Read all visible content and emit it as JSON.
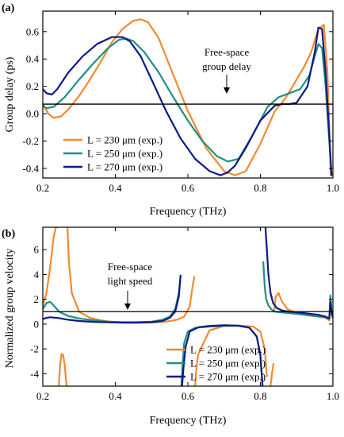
{
  "chart_data": [
    {
      "panel_label": "(a)",
      "type": "line",
      "xlabel": "Frequency (THz)",
      "ylabel": "Group delay (ps)",
      "xlim": [
        0.2,
        1.0
      ],
      "ylim": [
        -0.47,
        0.75
      ],
      "xticks": [
        "0.2",
        "0.4",
        "0.6",
        "0.8",
        "1.0"
      ],
      "yticks": [
        "-0.4",
        "-0.2",
        "0.0",
        "0.2",
        "0.4",
        "0.6"
      ],
      "xtick_values": [
        0.2,
        0.4,
        0.6,
        0.8,
        1.0
      ],
      "ytick_values": [
        -0.4,
        -0.2,
        0.0,
        0.2,
        0.4,
        0.6
      ],
      "grid": false,
      "legend_position": "bottom-left",
      "reference_line": {
        "y": 0.07,
        "annotation": [
          "Free-space",
          "group delay"
        ]
      },
      "series": [
        {
          "name": "L = 230 μm (exp.)",
          "color": "#f28a2e",
          "x": [
            0.2,
            0.215,
            0.23,
            0.25,
            0.27,
            0.3,
            0.33,
            0.36,
            0.39,
            0.42,
            0.45,
            0.47,
            0.49,
            0.52,
            0.55,
            0.6,
            0.65,
            0.7,
            0.73,
            0.76,
            0.8,
            0.84,
            0.86,
            0.88,
            0.9,
            0.92,
            0.94,
            0.96,
            0.975,
            0.985,
            0.99,
            0.994
          ],
          "y": [
            0.07,
            0.0,
            -0.03,
            -0.02,
            0.03,
            0.13,
            0.25,
            0.38,
            0.52,
            0.62,
            0.68,
            0.69,
            0.67,
            0.55,
            0.35,
            0.02,
            -0.25,
            -0.42,
            -0.45,
            -0.42,
            -0.22,
            0.02,
            0.08,
            0.16,
            0.25,
            0.34,
            0.45,
            0.62,
            0.65,
            0.3,
            -0.1,
            -0.45
          ]
        },
        {
          "name": "L = 250 μm (exp.)",
          "color": "#1f8f80",
          "x": [
            0.2,
            0.21,
            0.23,
            0.26,
            0.3,
            0.34,
            0.38,
            0.41,
            0.43,
            0.45,
            0.48,
            0.52,
            0.56,
            0.6,
            0.64,
            0.68,
            0.71,
            0.74,
            0.78,
            0.82,
            0.85,
            0.88,
            0.91,
            0.935,
            0.95,
            0.96,
            0.97,
            0.98,
            0.99,
            0.996
          ],
          "y": [
            0.06,
            0.04,
            0.05,
            0.12,
            0.25,
            0.37,
            0.48,
            0.54,
            0.55,
            0.53,
            0.45,
            0.3,
            0.12,
            -0.05,
            -0.2,
            -0.31,
            -0.35,
            -0.33,
            -0.15,
            0.05,
            0.12,
            0.15,
            0.18,
            0.28,
            0.42,
            0.51,
            0.48,
            0.2,
            -0.2,
            -0.45
          ]
        },
        {
          "name": "L = 270 μm (exp.)",
          "color": "#0d1a86",
          "x": [
            0.2,
            0.21,
            0.225,
            0.24,
            0.27,
            0.31,
            0.35,
            0.39,
            0.42,
            0.44,
            0.47,
            0.5,
            0.54,
            0.58,
            0.62,
            0.66,
            0.69,
            0.71,
            0.73,
            0.76,
            0.8,
            0.84,
            0.86,
            0.88,
            0.9,
            0.93,
            0.95,
            0.96,
            0.97,
            0.98,
            0.99,
            0.996
          ],
          "y": [
            0.18,
            0.15,
            0.14,
            0.18,
            0.3,
            0.42,
            0.51,
            0.56,
            0.56,
            0.53,
            0.42,
            0.25,
            0.02,
            -0.18,
            -0.33,
            -0.42,
            -0.45,
            -0.43,
            -0.38,
            -0.25,
            -0.05,
            0.06,
            0.07,
            0.07,
            0.08,
            0.2,
            0.45,
            0.63,
            0.62,
            0.3,
            -0.15,
            -0.45
          ]
        }
      ]
    },
    {
      "panel_label": "(b)",
      "type": "line",
      "xlabel": "Frequency (THz)",
      "ylabel": "Normalized group velocity",
      "xlim": [
        0.2,
        1.0
      ],
      "ylim": [
        -5,
        7.8
      ],
      "xticks": [
        "0.2",
        "0.4",
        "0.6",
        "0.8",
        "1.0"
      ],
      "yticks": [
        "-4",
        "-2",
        "0",
        "2",
        "4",
        "6"
      ],
      "xtick_values": [
        0.2,
        0.4,
        0.6,
        0.8,
        1.0
      ],
      "ytick_values": [
        -4,
        -2,
        0,
        2,
        4,
        6
      ],
      "grid": false,
      "legend_position": "bottom-right",
      "reference_line": {
        "y": 1.0,
        "annotation": [
          "Free-space",
          "light speed"
        ]
      },
      "series": [
        {
          "name": "L = 230 μm (exp.)",
          "color": "#f28a2e",
          "segments": [
            {
              "x": [
                0.2,
                0.21,
                0.22,
                0.23,
                0.236,
                0.24
              ],
              "y": [
                1.5,
                2.5,
                4.5,
                7.0,
                7.8,
                7.8
              ]
            },
            {
              "x": [
                0.244,
                0.248,
                0.252,
                0.256,
                0.26,
                0.264,
                0.266
              ],
              "y": [
                -5.0,
                -3.2,
                -2.4,
                -2.5,
                -3.2,
                -4.5,
                -5.0
              ]
            },
            {
              "x": [
                0.268,
                0.272,
                0.28,
                0.3,
                0.33,
                0.37,
                0.41,
                0.45,
                0.5,
                0.54,
                0.57,
                0.59,
                0.605,
                0.613,
                0.618
              ],
              "y": [
                7.8,
                5.0,
                2.5,
                1.0,
                0.5,
                0.25,
                0.12,
                0.1,
                0.12,
                0.2,
                0.35,
                0.6,
                1.4,
                3.0,
                3.8
              ]
            },
            {
              "x": [
                0.62,
                0.624,
                0.628,
                0.632
              ],
              "y": [
                -5.0,
                -3.5,
                -2.5,
                -2.2
              ]
            },
            {
              "x": [
                0.632,
                0.66,
                0.7,
                0.74,
                0.78,
                0.8,
                0.812,
                0.818
              ],
              "y": [
                -2.2,
                -0.5,
                -0.15,
                -0.12,
                -0.2,
                -0.6,
                -2.0,
                -4.2
              ]
            },
            {
              "x": [
                0.828,
                0.832,
                0.836
              ],
              "y": [
                -5.0,
                -4.0,
                -3.2
              ]
            },
            {
              "x": [
                0.838,
                0.842,
                0.85,
                0.86,
                0.875,
                0.9,
                0.93,
                0.96,
                0.98,
                0.99,
                0.995,
                1.0
              ],
              "y": [
                1.0,
                2.2,
                2.5,
                1.8,
                1.2,
                0.9,
                0.7,
                0.6,
                0.5,
                0.3,
                1.2,
                0.5
              ]
            }
          ]
        },
        {
          "name": "L = 250 μm (exp.)",
          "color": "#1f8f80",
          "segments": [
            {
              "x": [
                0.2,
                0.21,
                0.22,
                0.23,
                0.245,
                0.27,
                0.3,
                0.34,
                0.38,
                0.42,
                0.46,
                0.5,
                0.53,
                0.55,
                0.565,
                0.575,
                0.58
              ],
              "y": [
                1.2,
                1.7,
                1.8,
                1.5,
                1.0,
                0.65,
                0.45,
                0.3,
                0.2,
                0.15,
                0.15,
                0.2,
                0.35,
                0.6,
                1.2,
                2.5,
                3.9
              ]
            },
            {
              "x": [
                0.582,
                0.586,
                0.59,
                0.6,
                0.62,
                0.66,
                0.7,
                0.74,
                0.77,
                0.79,
                0.8,
                0.806
              ],
              "y": [
                -5.0,
                -3.0,
                -1.5,
                -0.6,
                -0.3,
                -0.2,
                -0.15,
                -0.15,
                -0.3,
                -1.0,
                -2.5,
                -5.0
              ]
            },
            {
              "x": [
                0.808,
                0.812,
                0.816,
                0.822,
                0.83,
                0.84,
                0.855,
                0.87,
                0.89,
                0.92,
                0.95,
                0.98,
                0.99,
                0.993,
                0.996,
                1.0
              ],
              "y": [
                5.0,
                3.0,
                2.0,
                1.5,
                1.2,
                1.0,
                0.95,
                0.9,
                0.85,
                0.75,
                0.65,
                0.55,
                0.4,
                2.3,
                1.2,
                0.6
              ]
            }
          ]
        },
        {
          "name": "L = 270 μm (exp.)",
          "color": "#0d1a86",
          "segments": [
            {
              "x": [
                0.2,
                0.21,
                0.22,
                0.24,
                0.27,
                0.3,
                0.34,
                0.38,
                0.42,
                0.46,
                0.5,
                0.53,
                0.55,
                0.565,
                0.575,
                0.58
              ],
              "y": [
                0.4,
                0.5,
                0.55,
                0.5,
                0.35,
                0.25,
                0.18,
                0.14,
                0.12,
                0.12,
                0.15,
                0.25,
                0.5,
                1.0,
                2.2,
                3.9
              ]
            },
            {
              "x": [
                0.584,
                0.588,
                0.594,
                0.605,
                0.63,
                0.66,
                0.7,
                0.74,
                0.77,
                0.79,
                0.8,
                0.806
              ],
              "y": [
                -5.0,
                -3.5,
                -1.8,
                -0.6,
                -0.25,
                -0.15,
                -0.1,
                -0.12,
                -0.3,
                -1.0,
                -2.5,
                -5.0
              ]
            },
            {
              "x": [
                0.814,
                0.818,
                0.822,
                0.828,
                0.835,
                0.845,
                0.86,
                0.88,
                0.9,
                0.93,
                0.96,
                0.98,
                0.99,
                0.993,
                0.996,
                1.0
              ],
              "y": [
                7.8,
                6.0,
                4.0,
                2.5,
                1.7,
                1.3,
                1.1,
                1.0,
                0.95,
                0.85,
                0.75,
                0.6,
                0.45,
                1.8,
                1.0,
                0.5
              ]
            }
          ]
        }
      ]
    }
  ]
}
